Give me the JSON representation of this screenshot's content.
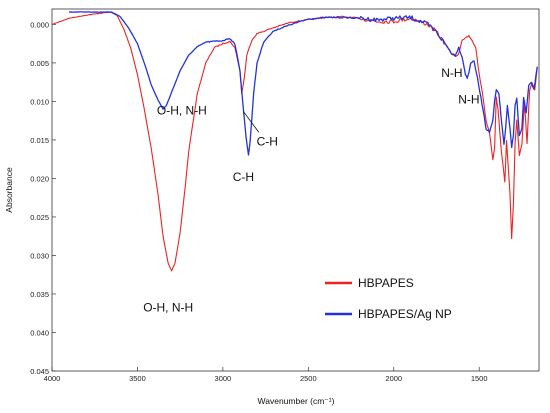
{
  "chart_data": {
    "type": "line",
    "xlabel": "Wavenumber (cm⁻¹)",
    "ylabel": "Absorbance",
    "xlim": [
      4000,
      1150
    ],
    "ylim": [
      0.045,
      -0.002
    ],
    "x_reversed": true,
    "y_reversed": true,
    "x_ticks": [
      4000,
      3500,
      3000,
      2500,
      2000,
      1500
    ],
    "y_ticks": [
      0.0,
      0.005,
      0.01,
      0.015,
      0.02,
      0.025,
      0.03,
      0.035,
      0.04,
      0.045
    ],
    "x_tick_labels": [
      "4000",
      "3500",
      "3000",
      "2500",
      "2000",
      "1500"
    ],
    "y_tick_labels": [
      "0.000",
      "0.005",
      "0.010",
      "0.015",
      "0.020",
      "0.025",
      "0.030",
      "0.035",
      "0.040",
      "0.045"
    ],
    "grid": false,
    "legend_position": "lower-right",
    "series": [
      {
        "name": "HBPAPES",
        "color": "#ee2222",
        "points": [
          [
            4000,
            0.0
          ],
          [
            3900,
            -0.0008
          ],
          [
            3800,
            -0.0012
          ],
          [
            3700,
            -0.0015
          ],
          [
            3660,
            -0.0016
          ],
          [
            3620,
            -0.0012
          ],
          [
            3580,
            0.0006
          ],
          [
            3540,
            0.003
          ],
          [
            3500,
            0.0065
          ],
          [
            3460,
            0.011
          ],
          [
            3420,
            0.016
          ],
          [
            3380,
            0.022
          ],
          [
            3350,
            0.0275
          ],
          [
            3320,
            0.031
          ],
          [
            3300,
            0.032
          ],
          [
            3280,
            0.031
          ],
          [
            3250,
            0.027
          ],
          [
            3220,
            0.021
          ],
          [
            3200,
            0.0165
          ],
          [
            3150,
            0.009
          ],
          [
            3100,
            0.005
          ],
          [
            3050,
            0.003
          ],
          [
            3000,
            0.0025
          ],
          [
            2960,
            0.0022
          ],
          [
            2930,
            0.003
          ],
          [
            2900,
            0.006
          ],
          [
            2890,
            0.009
          ],
          [
            2875,
            0.007
          ],
          [
            2860,
            0.004
          ],
          [
            2830,
            0.002
          ],
          [
            2800,
            0.0012
          ],
          [
            2700,
            0.0004
          ],
          [
            2600,
            -0.0003
          ],
          [
            2500,
            -0.0006
          ],
          [
            2400,
            -0.0009
          ],
          [
            2300,
            -0.001
          ],
          [
            2200,
            -0.0008
          ],
          [
            2100,
            -0.0004
          ],
          [
            2000,
            -0.0004
          ],
          [
            1900,
            -0.0008
          ],
          [
            1800,
            0.0
          ],
          [
            1750,
            0.001
          ],
          [
            1700,
            0.0025
          ],
          [
            1660,
            0.0038
          ],
          [
            1640,
            0.0042
          ],
          [
            1620,
            0.0038
          ],
          [
            1600,
            0.002
          ],
          [
            1580,
            0.0018
          ],
          [
            1560,
            0.0015
          ],
          [
            1540,
            0.0022
          ],
          [
            1520,
            0.003
          ],
          [
            1500,
            0.0065
          ],
          [
            1480,
            0.009
          ],
          [
            1460,
            0.0125
          ],
          [
            1440,
            0.014
          ],
          [
            1420,
            0.0175
          ],
          [
            1410,
            0.016
          ],
          [
            1400,
            0.0095
          ],
          [
            1390,
            0.011
          ],
          [
            1370,
            0.0165
          ],
          [
            1350,
            0.0205
          ],
          [
            1340,
            0.015
          ],
          [
            1330,
            0.0185
          ],
          [
            1320,
            0.022
          ],
          [
            1310,
            0.0278
          ],
          [
            1300,
            0.0235
          ],
          [
            1290,
            0.0155
          ],
          [
            1280,
            0.0125
          ],
          [
            1265,
            0.017
          ],
          [
            1250,
            0.0155
          ],
          [
            1235,
            0.01
          ],
          [
            1220,
            0.0155
          ],
          [
            1205,
            0.0085
          ],
          [
            1190,
            0.0075
          ],
          [
            1175,
            0.0085
          ],
          [
            1160,
            0.0055
          ]
        ]
      },
      {
        "name": "HBPAPES/Ag NP",
        "color": "#2233dd",
        "points": [
          [
            3900,
            -0.0016
          ],
          [
            3800,
            -0.0016
          ],
          [
            3700,
            -0.0016
          ],
          [
            3650,
            -0.0016
          ],
          [
            3600,
            -0.001
          ],
          [
            3550,
            0.0005
          ],
          [
            3500,
            0.0025
          ],
          [
            3460,
            0.005
          ],
          [
            3420,
            0.0078
          ],
          [
            3380,
            0.0098
          ],
          [
            3350,
            0.011
          ],
          [
            3330,
            0.0105
          ],
          [
            3300,
            0.0088
          ],
          [
            3250,
            0.006
          ],
          [
            3200,
            0.004
          ],
          [
            3150,
            0.0029
          ],
          [
            3100,
            0.0023
          ],
          [
            3050,
            0.0022
          ],
          [
            3000,
            0.0021
          ],
          [
            2960,
            0.0018
          ],
          [
            2930,
            0.0025
          ],
          [
            2900,
            0.006
          ],
          [
            2880,
            0.011
          ],
          [
            2865,
            0.0145
          ],
          [
            2850,
            0.017
          ],
          [
            2840,
            0.015
          ],
          [
            2820,
            0.009
          ],
          [
            2800,
            0.005
          ],
          [
            2760,
            0.0022
          ],
          [
            2700,
            0.0008
          ],
          [
            2600,
            0.0
          ],
          [
            2500,
            -0.0007
          ],
          [
            2400,
            -0.0009
          ],
          [
            2300,
            -0.0009
          ],
          [
            2200,
            -0.0008
          ],
          [
            2100,
            -0.0006
          ],
          [
            2000,
            -0.0008
          ],
          [
            1900,
            -0.0009
          ],
          [
            1800,
            0.0
          ],
          [
            1750,
            0.001
          ],
          [
            1700,
            0.0025
          ],
          [
            1660,
            0.0038
          ],
          [
            1640,
            0.004
          ],
          [
            1620,
            0.003
          ],
          [
            1600,
            0.0042
          ],
          [
            1580,
            0.0065
          ],
          [
            1570,
            0.007
          ],
          [
            1560,
            0.0062
          ],
          [
            1550,
            0.005
          ],
          [
            1530,
            0.0048
          ],
          [
            1510,
            0.007
          ],
          [
            1490,
            0.0095
          ],
          [
            1470,
            0.012
          ],
          [
            1460,
            0.0135
          ],
          [
            1440,
            0.014
          ],
          [
            1420,
            0.0125
          ],
          [
            1410,
            0.01
          ],
          [
            1400,
            0.0085
          ],
          [
            1385,
            0.009
          ],
          [
            1370,
            0.0125
          ],
          [
            1355,
            0.0155
          ],
          [
            1345,
            0.0135
          ],
          [
            1335,
            0.0105
          ],
          [
            1320,
            0.0135
          ],
          [
            1310,
            0.016
          ],
          [
            1300,
            0.0145
          ],
          [
            1290,
            0.0105
          ],
          [
            1280,
            0.0095
          ],
          [
            1265,
            0.0145
          ],
          [
            1250,
            0.0135
          ],
          [
            1240,
            0.0095
          ],
          [
            1225,
            0.0115
          ],
          [
            1210,
            0.008
          ],
          [
            1195,
            0.0075
          ],
          [
            1180,
            0.0085
          ],
          [
            1160,
            0.0055
          ]
        ]
      }
    ],
    "annotations": [
      {
        "text": "O-H, N-H",
        "x": 3240,
        "y": 0.0117
      },
      {
        "text": "C-H",
        "x": 2740,
        "y": 0.0157
      },
      {
        "text": "C-H",
        "x": 2880,
        "y": 0.0203
      },
      {
        "text": "O-H, N-H",
        "x": 3320,
        "y": 0.0373
      },
      {
        "text": "N-H",
        "x": 1660,
        "y": 0.0068
      },
      {
        "text": "N-H",
        "x": 1560,
        "y": 0.0103
      }
    ],
    "leader_line": {
      "from": [
        2880,
        0.0113
      ],
      "to": [
        2790,
        0.014
      ]
    }
  }
}
